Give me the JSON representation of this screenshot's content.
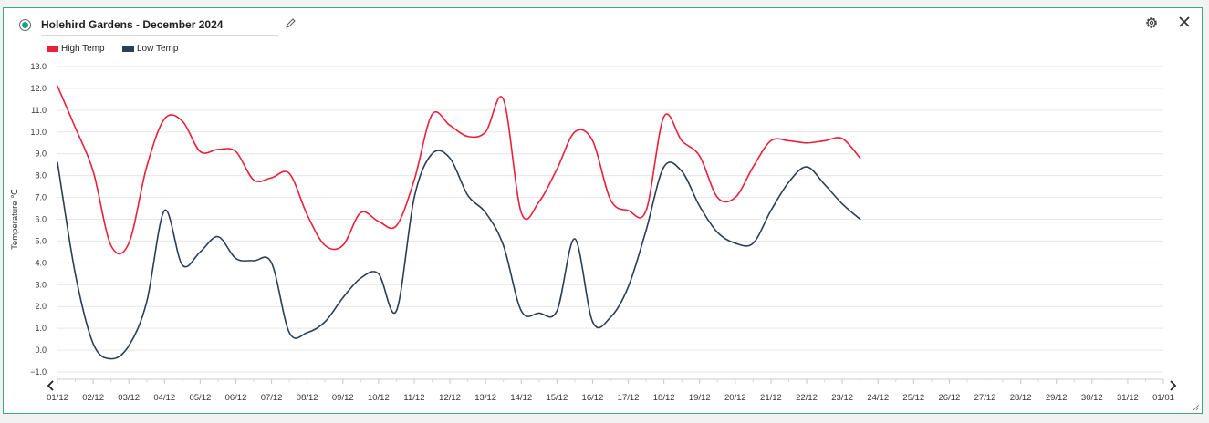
{
  "panel": {
    "title": "Holehird Gardens - December 2024"
  },
  "icons": {
    "radio": "radio-selected-icon",
    "edit": "pencil-icon",
    "settings": "gear-icon",
    "close": "close-icon",
    "scroll_left": "chevron-left-icon",
    "scroll_right": "chevron-right-icon"
  },
  "colors": {
    "high": "#e8203a",
    "low": "#2c3e55",
    "accent": "#14a383",
    "border": "#3aa889"
  },
  "chart_data": {
    "type": "line",
    "ylabel": "Temperature ℃",
    "ylim": [
      -1,
      13
    ],
    "y_ticks": [
      "13.0",
      "12.0",
      "11.0",
      "10.0",
      "9.0",
      "8.0",
      "7.0",
      "6.0",
      "5.0",
      "4.0",
      "3.0",
      "2.0",
      "1.0",
      "0.0",
      "−1.0"
    ],
    "categories": [
      "01/12",
      "02/12",
      "03/12",
      "04/12",
      "05/12",
      "06/12",
      "07/12",
      "08/12",
      "09/12",
      "10/12",
      "11/12",
      "12/12",
      "13/12",
      "14/12",
      "15/12",
      "16/12",
      "17/12",
      "18/12",
      "19/12",
      "20/12",
      "21/12",
      "22/12",
      "23/12",
      "24/12",
      "25/12",
      "26/12",
      "27/12",
      "28/12",
      "29/12",
      "30/12",
      "31/12",
      "01/01"
    ],
    "legend_position": "top-left",
    "grid": true,
    "series": [
      {
        "name": "High Temp",
        "color": "#e8203a",
        "points": [
          [
            0,
            12.1
          ],
          [
            1,
            10.2
          ],
          [
            2,
            8.2
          ],
          [
            3,
            4.8
          ],
          [
            4,
            4.9
          ],
          [
            5,
            8.4
          ],
          [
            6,
            10.6
          ],
          [
            7,
            10.5
          ],
          [
            8,
            9.1
          ],
          [
            9,
            9.2
          ],
          [
            10,
            9.1
          ],
          [
            11,
            7.8
          ],
          [
            12,
            7.9
          ],
          [
            13,
            8.1
          ],
          [
            14,
            6.2
          ],
          [
            15,
            4.8
          ],
          [
            16,
            4.8
          ],
          [
            17,
            6.3
          ],
          [
            18,
            5.9
          ],
          [
            19,
            5.7
          ],
          [
            20,
            7.8
          ],
          [
            21,
            10.8
          ],
          [
            22,
            10.3
          ],
          [
            23,
            9.8
          ],
          [
            24,
            10.0
          ],
          [
            25,
            11.5
          ],
          [
            26,
            6.3
          ],
          [
            27,
            6.8
          ],
          [
            28,
            8.3
          ],
          [
            29,
            10.0
          ],
          [
            30,
            9.6
          ],
          [
            31,
            6.9
          ],
          [
            32,
            6.4
          ],
          [
            33,
            6.4
          ],
          [
            34,
            10.7
          ],
          [
            35,
            9.6
          ],
          [
            36,
            8.9
          ],
          [
            37,
            7.0
          ],
          [
            38,
            7.0
          ],
          [
            39,
            8.4
          ],
          [
            40,
            9.6
          ],
          [
            41,
            9.6
          ],
          [
            42,
            9.5
          ],
          [
            43,
            9.6
          ],
          [
            44,
            9.7
          ],
          [
            45,
            8.8
          ]
        ]
      },
      {
        "name": "Low Temp",
        "color": "#2c3e55",
        "points": [
          [
            0,
            8.6
          ],
          [
            1,
            3.5
          ],
          [
            2,
            0.3
          ],
          [
            3,
            -0.4
          ],
          [
            4,
            0.2
          ],
          [
            5,
            2.2
          ],
          [
            6,
            6.4
          ],
          [
            7,
            3.9
          ],
          [
            8,
            4.5
          ],
          [
            9,
            5.2
          ],
          [
            10,
            4.2
          ],
          [
            11,
            4.1
          ],
          [
            12,
            4.0
          ],
          [
            13,
            0.8
          ],
          [
            14,
            0.8
          ],
          [
            15,
            1.3
          ],
          [
            16,
            2.4
          ],
          [
            17,
            3.3
          ],
          [
            18,
            3.5
          ],
          [
            19,
            1.8
          ],
          [
            20,
            7.0
          ],
          [
            21,
            9.0
          ],
          [
            22,
            8.8
          ],
          [
            23,
            7.1
          ],
          [
            24,
            6.3
          ],
          [
            25,
            4.8
          ],
          [
            26,
            1.8
          ],
          [
            27,
            1.7
          ],
          [
            28,
            1.8
          ],
          [
            29,
            5.1
          ],
          [
            30,
            1.3
          ],
          [
            31,
            1.5
          ],
          [
            32,
            2.9
          ],
          [
            33,
            5.5
          ],
          [
            34,
            8.4
          ],
          [
            35,
            8.2
          ],
          [
            36,
            6.6
          ],
          [
            37,
            5.4
          ],
          [
            38,
            4.9
          ],
          [
            39,
            4.9
          ],
          [
            40,
            6.4
          ],
          [
            41,
            7.7
          ],
          [
            42,
            8.4
          ],
          [
            43,
            7.6
          ],
          [
            44,
            6.7
          ],
          [
            45,
            6.0
          ]
        ]
      }
    ]
  }
}
